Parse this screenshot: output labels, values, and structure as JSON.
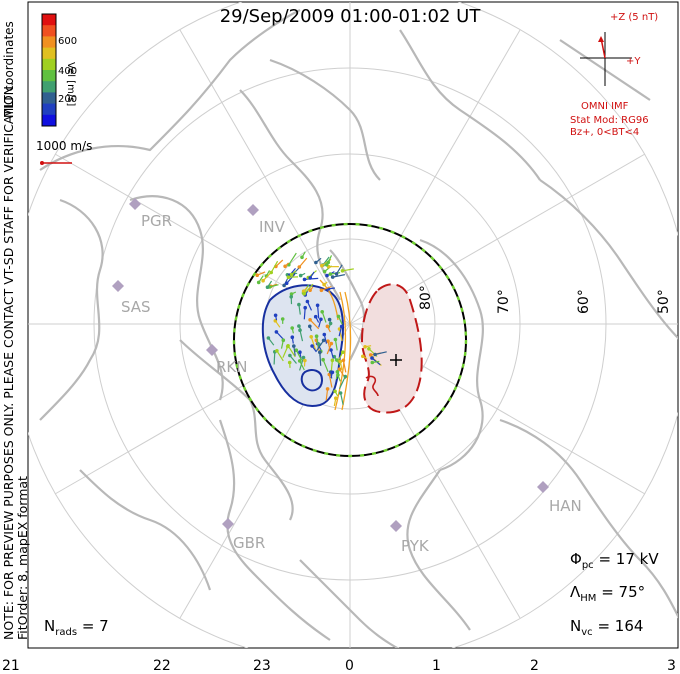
{
  "title": "29/Sep/2009 01:00-01:02 UT",
  "side_notes": {
    "note": "NOTE: FOR PREVIEW PURPOSES ONLY. PLEASE CONTACT VT-SD STAFF FOR VERIFICATION.",
    "fit": "FitOrder: 8, mapEX format",
    "coords": "MLT coordinates"
  },
  "colorbar": {
    "label": "Vel [m/s]",
    "ticks": [
      "600",
      "400",
      "200"
    ],
    "colors": [
      "#e01010",
      "#f05020",
      "#f09020",
      "#e0c020",
      "#a0d020",
      "#60c040",
      "#40a070",
      "#306090",
      "#2040c0",
      "#1010e0"
    ]
  },
  "reference_vector": {
    "label": "1000 m/s",
    "color": "#d01010"
  },
  "imf": {
    "z_label": "+Z (5 nT)",
    "y_label": "+Y",
    "source": "OMNI IMF",
    "model": "Stat Mod: RG96",
    "condition": "Bz+, 0<BT<4",
    "color": "#d01010"
  },
  "stats": {
    "phi_pc_sym": "Φ",
    "phi_pc_sub": "pc",
    "phi_pc_val": "= 17 kV",
    "lambda_sym": "Λ",
    "lambda_sub": "HM",
    "lambda_val": "= 75°",
    "nvc_sym": "N",
    "nvc_sub": "vc",
    "nvc_val": "= 164",
    "nrads_sym": "N",
    "nrads_sub": "rads",
    "nrads_val": "= 7"
  },
  "latitude_labels": [
    "80°",
    "70°",
    "60°",
    "50°"
  ],
  "mlt_labels": [
    "21",
    "22",
    "23",
    "0",
    "1",
    "2",
    "3"
  ],
  "radar_sites": [
    "PGR",
    "INV",
    "SAS",
    "RKN",
    "GBR",
    "PYK",
    "HAN"
  ],
  "colors": {
    "land": "#b8b8b8",
    "grid": "#c8c8c8",
    "boundary_dash_a": "#000000",
    "boundary_dash_b": "#70d030",
    "positive_cell": "#c01818",
    "negative_cell": "#1830a0"
  }
}
